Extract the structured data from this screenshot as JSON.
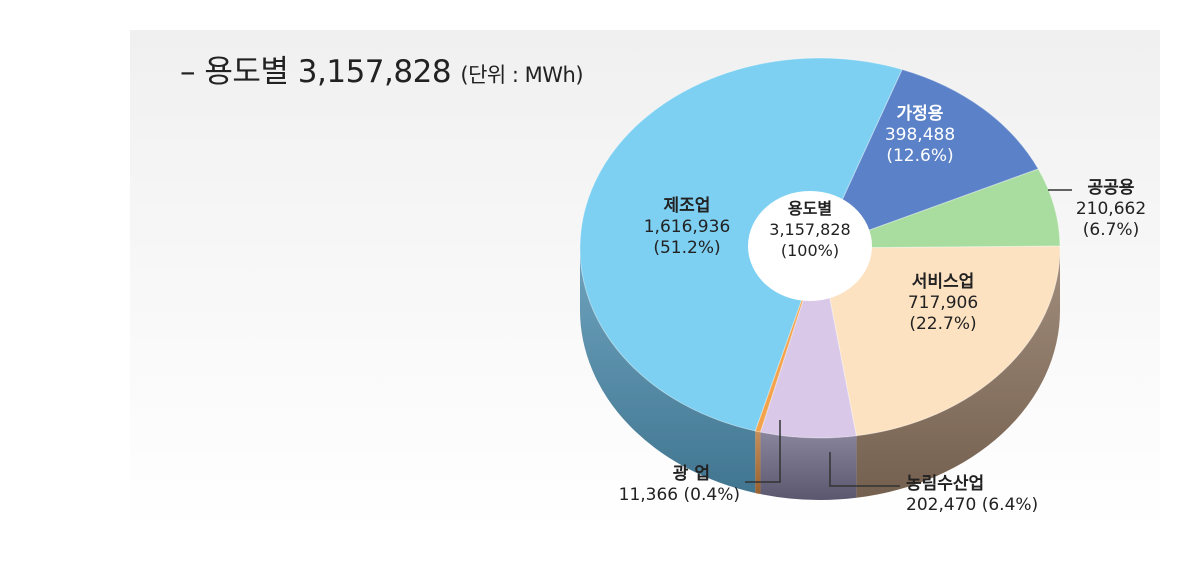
{
  "header": {
    "title": "– 용도별 3,157,828",
    "unit": "(단위 : MWh)"
  },
  "chart_data": {
    "type": "pie",
    "title": "– 용도별 3,157,828",
    "unit": "(단위 : MWh)",
    "center": {
      "label": "용도별",
      "value": "3,157,828",
      "percent": "(100%)"
    },
    "slices": [
      {
        "name": "가정용",
        "value": 398488,
        "value_text": "398,488",
        "percent_text": "(12.6%)",
        "color": "#5b82c8"
      },
      {
        "name": "공공용",
        "value": 210662,
        "value_text": "210,662",
        "percent_text": "(6.7%)",
        "color": "#a9dda0"
      },
      {
        "name": "서비스업",
        "value": 717906,
        "value_text": "717,906",
        "percent_text": "(22.7%)",
        "color": "#fde2c2"
      },
      {
        "name": "농림수산업",
        "value": 202470,
        "value_text": "202,470",
        "percent_text": "(6.4%)",
        "color": "#d9c8e8"
      },
      {
        "name": "광 업",
        "value": 11366,
        "value_text": "11,366",
        "percent_text": "(0.4%)",
        "color": "#f2a34c"
      },
      {
        "name": "제조업",
        "value": 1616936,
        "value_text": "1,616,936",
        "percent_text": "(51.2%)",
        "color": "#7dd0f2"
      }
    ],
    "side_colors": [
      "#4a6aa3",
      "#7fae72",
      "#8e7560",
      "#6e6a86",
      "#b9773a",
      "#4f8fb0"
    ]
  }
}
